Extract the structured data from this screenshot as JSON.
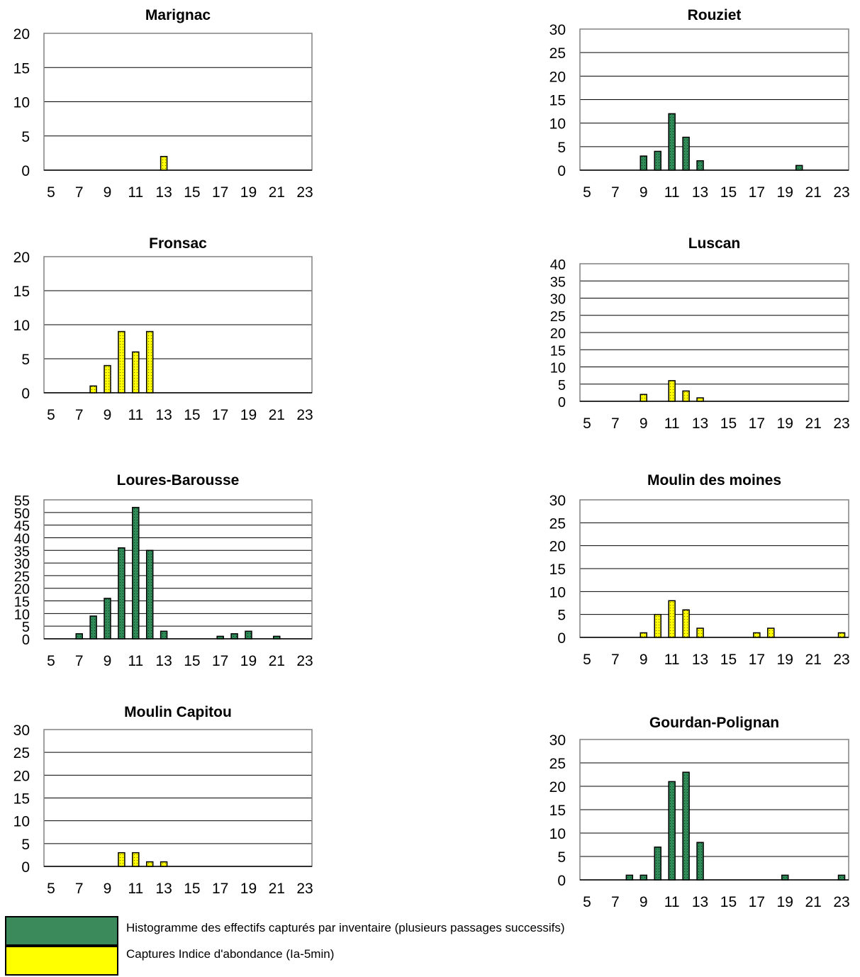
{
  "colors": {
    "green": "#2e8b57",
    "yellow": "#ffff00",
    "legend_green": "#3a8a5c"
  },
  "legend": {
    "items": [
      {
        "label": "Histogramme des effectifs capturés par inventaire  (plusieurs passages successifs)",
        "color": "#3a8a5c"
      },
      {
        "label": "Captures Indice d'abondance (Ia-5min)",
        "color": "#ffff00"
      }
    ]
  },
  "chart_data": [
    {
      "type": "bar",
      "title": "Marignac",
      "ylim": [
        0,
        20
      ],
      "yticks": [
        0,
        5,
        10,
        15,
        20
      ],
      "xlim": [
        5,
        23
      ],
      "xticks": [
        5,
        7,
        9,
        11,
        13,
        15,
        17,
        19,
        21,
        23
      ],
      "grid": true,
      "series": [
        {
          "color": "yellow",
          "points": [
            [
              13,
              2
            ]
          ]
        }
      ]
    },
    {
      "type": "bar",
      "title": "Rouziet",
      "ylim": [
        0,
        30
      ],
      "yticks": [
        0,
        5,
        10,
        15,
        20,
        25,
        30
      ],
      "xlim": [
        5,
        23
      ],
      "xticks": [
        5,
        7,
        9,
        11,
        13,
        15,
        17,
        19,
        21,
        23
      ],
      "grid": true,
      "series": [
        {
          "color": "green",
          "points": [
            [
              9,
              3
            ],
            [
              10,
              4
            ],
            [
              11,
              12
            ],
            [
              12,
              7
            ],
            [
              13,
              2
            ],
            [
              20,
              1
            ]
          ]
        }
      ]
    },
    {
      "type": "bar",
      "title": "Fronsac",
      "ylim": [
        0,
        20
      ],
      "yticks": [
        0,
        5,
        10,
        15,
        20
      ],
      "xlim": [
        5,
        23
      ],
      "xticks": [
        5,
        7,
        9,
        11,
        13,
        15,
        17,
        19,
        21,
        23
      ],
      "grid": true,
      "series": [
        {
          "color": "yellow",
          "points": [
            [
              8,
              1
            ],
            [
              9,
              4
            ],
            [
              10,
              9
            ],
            [
              11,
              6
            ],
            [
              12,
              9
            ]
          ]
        }
      ]
    },
    {
      "type": "bar",
      "title": "Luscan",
      "ylim": [
        0,
        40
      ],
      "yticks": [
        0,
        5,
        10,
        15,
        20,
        25,
        30,
        35,
        40
      ],
      "xlim": [
        5,
        23
      ],
      "xticks": [
        5,
        7,
        9,
        11,
        13,
        15,
        17,
        19,
        21,
        23
      ],
      "grid": true,
      "series": [
        {
          "color": "yellow",
          "points": [
            [
              9,
              2
            ],
            [
              11,
              6
            ],
            [
              12,
              3
            ],
            [
              13,
              1
            ]
          ]
        }
      ]
    },
    {
      "type": "bar",
      "title": "Loures-Barousse",
      "ylim": [
        0,
        55
      ],
      "yticks": [
        0,
        5,
        10,
        15,
        20,
        25,
        30,
        35,
        40,
        45,
        50,
        55
      ],
      "xlim": [
        5,
        23
      ],
      "xticks": [
        5,
        7,
        9,
        11,
        13,
        15,
        17,
        19,
        21,
        23
      ],
      "grid": true,
      "series": [
        {
          "color": "green",
          "points": [
            [
              7,
              2
            ],
            [
              8,
              9
            ],
            [
              9,
              16
            ],
            [
              10,
              36
            ],
            [
              11,
              52
            ],
            [
              12,
              35
            ],
            [
              13,
              3
            ],
            [
              17,
              1
            ],
            [
              18,
              2
            ],
            [
              19,
              3
            ],
            [
              21,
              1
            ]
          ]
        }
      ]
    },
    {
      "type": "bar",
      "title": "Moulin des moines",
      "ylim": [
        0,
        30
      ],
      "yticks": [
        0,
        5,
        10,
        15,
        20,
        25,
        30
      ],
      "xlim": [
        5,
        23
      ],
      "xticks": [
        5,
        7,
        9,
        11,
        13,
        15,
        17,
        19,
        21,
        23
      ],
      "grid": true,
      "series": [
        {
          "color": "yellow",
          "points": [
            [
              9,
              1
            ],
            [
              10,
              5
            ],
            [
              11,
              8
            ],
            [
              12,
              6
            ],
            [
              13,
              2
            ],
            [
              17,
              1
            ],
            [
              18,
              2
            ],
            [
              23,
              1
            ]
          ]
        }
      ]
    },
    {
      "type": "bar",
      "title": "Moulin Capitou",
      "ylim": [
        0,
        30
      ],
      "yticks": [
        0,
        5,
        10,
        15,
        20,
        25,
        30
      ],
      "xlim": [
        5,
        23
      ],
      "xticks": [
        5,
        7,
        9,
        11,
        13,
        15,
        17,
        19,
        21,
        23
      ],
      "grid": true,
      "series": [
        {
          "color": "yellow",
          "points": [
            [
              10,
              3
            ],
            [
              11,
              3
            ],
            [
              12,
              1
            ],
            [
              13,
              1
            ]
          ]
        }
      ]
    },
    {
      "type": "bar",
      "title": "Gourdan-Polignan",
      "ylim": [
        0,
        30
      ],
      "yticks": [
        0,
        5,
        10,
        15,
        20,
        25,
        30
      ],
      "xlim": [
        5,
        23
      ],
      "xticks": [
        5,
        7,
        9,
        11,
        13,
        15,
        17,
        19,
        21,
        23
      ],
      "grid": true,
      "series": [
        {
          "color": "green",
          "points": [
            [
              8,
              1
            ],
            [
              9,
              1
            ],
            [
              10,
              7
            ],
            [
              11,
              21
            ],
            [
              12,
              23
            ],
            [
              13,
              8
            ],
            [
              19,
              1
            ],
            [
              23,
              1
            ]
          ]
        }
      ]
    }
  ]
}
